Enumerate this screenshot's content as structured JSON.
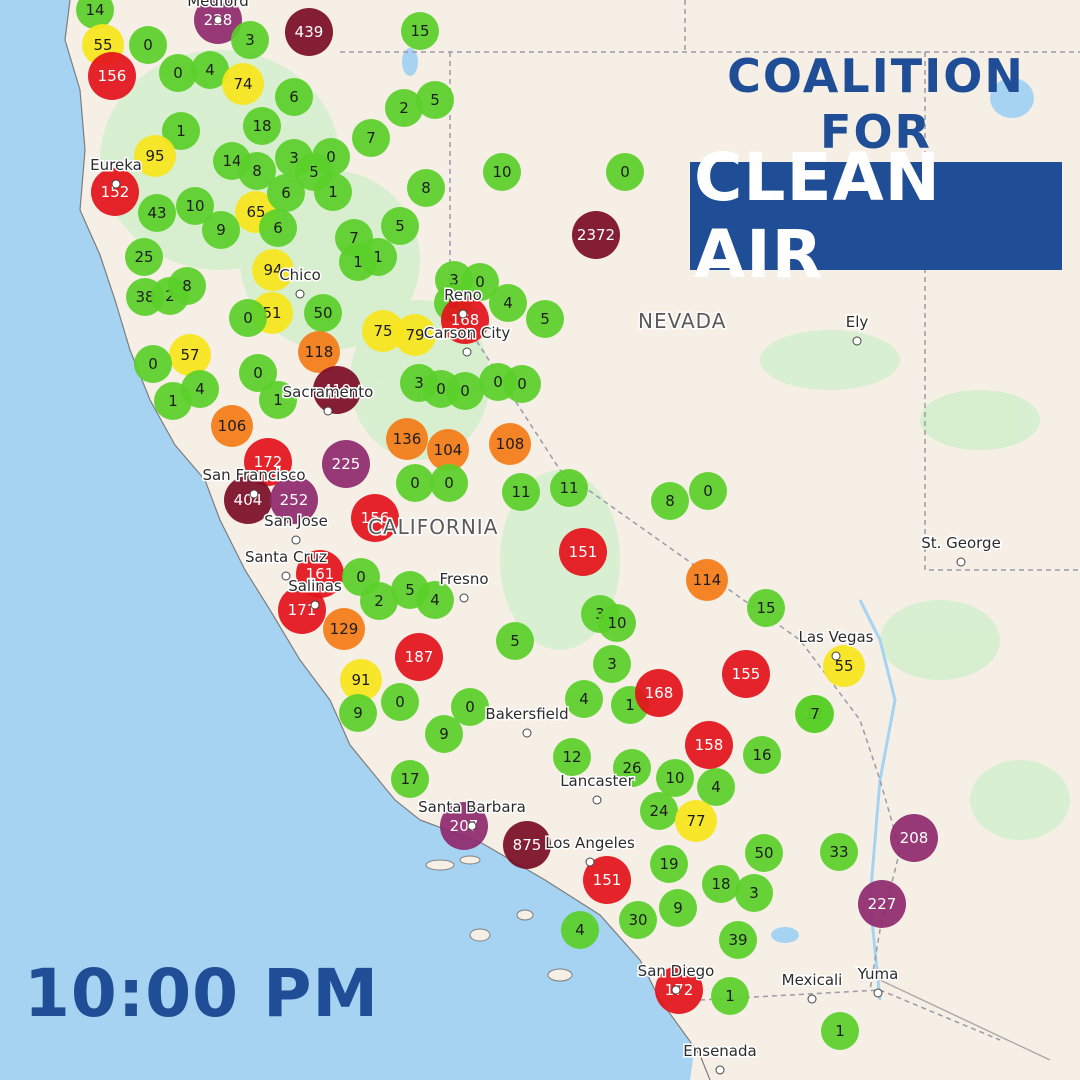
{
  "logo": {
    "line1": "COALITION FOR",
    "line2": "CLEAN AIR"
  },
  "time": "10:00 PM",
  "region_labels": [
    {
      "name": "NEVADA",
      "kind": "state"
    },
    {
      "name": "CALIFORNIA",
      "kind": "state"
    }
  ],
  "cities": [
    "Medford",
    "Eureka",
    "Chico",
    "Reno",
    "Carson City",
    "Sacramento",
    "San Francisco",
    "San Jose",
    "Santa Cruz",
    "Salinas",
    "Fresno",
    "Bakersfield",
    "Lancaster",
    "Santa Barbara",
    "Los Angeles",
    "San Diego",
    "Mexicali",
    "Yuma",
    "Ensenada",
    "Ely",
    "Las Vegas",
    "St. George"
  ],
  "aqi_palette": {
    "good": "#5ad02a",
    "moderate": "#f7e51c",
    "usg": "#f47c18",
    "unhealthy": "#e3131b",
    "very_unhealthy": "#8f2a6e",
    "hazardous": "#7a0e27",
    "faded": "#b7e69a"
  },
  "sensor_readings": [
    14,
    55,
    156,
    0,
    0,
    4,
    74,
    228,
    3,
    439,
    15,
    6,
    2,
    5,
    18,
    1,
    7,
    95,
    152,
    14,
    8,
    3,
    0,
    5,
    43,
    10,
    65,
    6,
    1,
    8,
    10,
    0,
    2372,
    25,
    9,
    6,
    7,
    5,
    1,
    38,
    2,
    8,
    94,
    1,
    3,
    0,
    4,
    0,
    51,
    50,
    0,
    57,
    0,
    75,
    79,
    168,
    5,
    118,
    0,
    4,
    1,
    419,
    1,
    3,
    0,
    0,
    0,
    0,
    106,
    136,
    104,
    108,
    172,
    225,
    404,
    252,
    156,
    0,
    0,
    11,
    11,
    8,
    0,
    151,
    161,
    171,
    129,
    0,
    2,
    5,
    4,
    3,
    10,
    114,
    187,
    5,
    3,
    15,
    155,
    55,
    0,
    91,
    0,
    9,
    9,
    4,
    1,
    168,
    12,
    17,
    12,
    26,
    10,
    4,
    16,
    158,
    207,
    875,
    151,
    19,
    24,
    77,
    50,
    18,
    3,
    208,
    33,
    30,
    4,
    9,
    227,
    39,
    172,
    1,
    1,
    7,
    5
  ]
}
